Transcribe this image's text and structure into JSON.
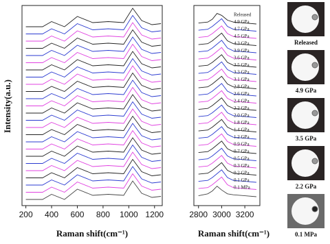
{
  "chart_data": [
    {
      "type": "line",
      "x_label": "Raman shift(cm⁻¹)",
      "y_label": "Intensity(a.u.)",
      "x": [
        200,
        330,
        400,
        500,
        600,
        720,
        840,
        960,
        1030,
        1100,
        1180,
        1250
      ],
      "xlim": [
        170,
        1260
      ],
      "xticks": [
        200,
        400,
        600,
        800,
        1000,
        1200
      ],
      "series": [
        {
          "color": "#222222",
          "values": [
            0.1,
            0.1,
            0.35,
            0.1,
            0.6,
            0.3,
            0.35,
            0.3,
            1.0,
            0.4,
            0.2,
            0.25
          ]
        },
        {
          "color": "#2a3ad0",
          "values": [
            0.1,
            0.1,
            0.35,
            0.1,
            0.6,
            0.3,
            0.35,
            0.3,
            1.0,
            0.4,
            0.2,
            0.25
          ]
        },
        {
          "color": "#e040e0",
          "values": [
            0.1,
            0.1,
            0.35,
            0.1,
            0.6,
            0.3,
            0.35,
            0.3,
            1.0,
            0.4,
            0.2,
            0.25
          ]
        },
        {
          "color": "#222222",
          "values": [
            0.1,
            0.1,
            0.35,
            0.1,
            0.6,
            0.3,
            0.35,
            0.3,
            1.0,
            0.4,
            0.2,
            0.25
          ]
        },
        {
          "color": "#2a3ad0",
          "values": [
            0.1,
            0.1,
            0.35,
            0.1,
            0.6,
            0.3,
            0.35,
            0.3,
            1.0,
            0.4,
            0.2,
            0.25
          ]
        },
        {
          "color": "#e040e0",
          "values": [
            0.1,
            0.1,
            0.35,
            0.1,
            0.6,
            0.3,
            0.35,
            0.3,
            1.0,
            0.4,
            0.2,
            0.25
          ]
        },
        {
          "color": "#222222",
          "values": [
            0.1,
            0.1,
            0.35,
            0.1,
            0.6,
            0.3,
            0.35,
            0.3,
            1.0,
            0.4,
            0.2,
            0.25
          ]
        },
        {
          "color": "#2a3ad0",
          "values": [
            0.1,
            0.1,
            0.35,
            0.1,
            0.6,
            0.3,
            0.35,
            0.3,
            1.0,
            0.4,
            0.2,
            0.25
          ]
        },
        {
          "color": "#e040e0",
          "values": [
            0.1,
            0.1,
            0.35,
            0.1,
            0.6,
            0.3,
            0.35,
            0.3,
            1.0,
            0.4,
            0.2,
            0.25
          ]
        },
        {
          "color": "#222222",
          "values": [
            0.1,
            0.1,
            0.35,
            0.1,
            0.6,
            0.3,
            0.35,
            0.3,
            1.0,
            0.4,
            0.2,
            0.25
          ]
        },
        {
          "color": "#2a3ad0",
          "values": [
            0.1,
            0.1,
            0.35,
            0.1,
            0.6,
            0.3,
            0.35,
            0.3,
            1.0,
            0.4,
            0.2,
            0.25
          ]
        },
        {
          "color": "#e040e0",
          "values": [
            0.1,
            0.1,
            0.35,
            0.1,
            0.6,
            0.3,
            0.35,
            0.3,
            1.0,
            0.4,
            0.2,
            0.25
          ]
        },
        {
          "color": "#222222",
          "values": [
            0.1,
            0.1,
            0.35,
            0.1,
            0.6,
            0.3,
            0.35,
            0.3,
            1.0,
            0.4,
            0.2,
            0.25
          ]
        },
        {
          "color": "#2a3ad0",
          "values": [
            0.1,
            0.1,
            0.35,
            0.1,
            0.6,
            0.3,
            0.35,
            0.3,
            1.0,
            0.4,
            0.2,
            0.25
          ]
        },
        {
          "color": "#e040e0",
          "values": [
            0.1,
            0.1,
            0.35,
            0.1,
            0.6,
            0.3,
            0.35,
            0.3,
            1.0,
            0.4,
            0.2,
            0.25
          ]
        },
        {
          "color": "#222222",
          "values": [
            0.1,
            0.1,
            0.35,
            0.1,
            0.6,
            0.3,
            0.35,
            0.3,
            1.0,
            0.4,
            0.2,
            0.25
          ]
        },
        {
          "color": "#2a3ad0",
          "values": [
            0.1,
            0.1,
            0.35,
            0.1,
            0.6,
            0.3,
            0.35,
            0.3,
            1.0,
            0.4,
            0.2,
            0.25
          ]
        },
        {
          "color": "#e040e0",
          "values": [
            0.1,
            0.1,
            0.35,
            0.1,
            0.6,
            0.3,
            0.35,
            0.3,
            1.0,
            0.4,
            0.2,
            0.25
          ]
        },
        {
          "color": "#222222",
          "values": [
            0.1,
            0.1,
            0.35,
            0.1,
            0.6,
            0.3,
            0.35,
            0.3,
            1.0,
            0.4,
            0.2,
            0.25
          ]
        },
        {
          "color": "#2a3ad0",
          "values": [
            0.1,
            0.1,
            0.35,
            0.1,
            0.6,
            0.3,
            0.35,
            0.3,
            1.0,
            0.4,
            0.2,
            0.25
          ]
        },
        {
          "color": "#e040e0",
          "values": [
            0.1,
            0.1,
            0.35,
            0.1,
            0.6,
            0.3,
            0.35,
            0.3,
            1.0,
            0.4,
            0.2,
            0.25
          ]
        },
        {
          "color": "#222222",
          "values": [
            0.1,
            0.1,
            0.35,
            0.1,
            0.6,
            0.3,
            0.35,
            0.3,
            1.0,
            0.4,
            0.2,
            0.25
          ]
        },
        {
          "color": "#2a3ad0",
          "values": [
            0.1,
            0.1,
            0.35,
            0.1,
            0.6,
            0.3,
            0.35,
            0.3,
            1.0,
            0.4,
            0.2,
            0.25
          ]
        },
        {
          "color": "#e040e0",
          "values": [
            0.1,
            0.1,
            0.35,
            0.1,
            0.6,
            0.3,
            0.35,
            0.3,
            1.0,
            0.4,
            0.2,
            0.25
          ]
        },
        {
          "color": "#444444",
          "values": [
            0.1,
            0.1,
            0.35,
            0.1,
            0.6,
            0.3,
            0.35,
            0.3,
            1.0,
            0.4,
            0.2,
            0.25
          ]
        }
      ]
    },
    {
      "type": "line",
      "x_label": "Raman shift(cm⁻¹)",
      "x": [
        2800,
        2880,
        2920,
        2960,
        3000,
        3050,
        3100,
        3200,
        3300
      ],
      "xlim": [
        2760,
        3330
      ],
      "xticks": [
        2800,
        3000,
        3200
      ],
      "series": [
        {
          "name": "Released",
          "color": "#222222",
          "values": [
            0.3,
            0.35,
            0.5,
            0.8,
            0.7,
            0.45,
            0.35,
            0.3,
            0.25
          ]
        },
        {
          "name": "4.9 GPa",
          "color": "#2a3ad0",
          "values": [
            0.3,
            0.35,
            0.5,
            0.7,
            0.9,
            0.5,
            0.35,
            0.3,
            0.25
          ]
        },
        {
          "name": "4.7 GPa",
          "color": "#e040e0",
          "values": [
            0.3,
            0.35,
            0.5,
            0.7,
            0.9,
            0.5,
            0.35,
            0.3,
            0.25
          ]
        },
        {
          "name": "4.5 GPa",
          "color": "#222222",
          "values": [
            0.3,
            0.35,
            0.5,
            0.7,
            0.9,
            0.5,
            0.35,
            0.3,
            0.25
          ]
        },
        {
          "name": "4.3 GPa",
          "color": "#2a3ad0",
          "values": [
            0.3,
            0.35,
            0.5,
            0.7,
            0.9,
            0.5,
            0.35,
            0.3,
            0.25
          ]
        },
        {
          "name": "3.9 GPa",
          "color": "#e040e0",
          "values": [
            0.3,
            0.35,
            0.5,
            0.7,
            0.9,
            0.5,
            0.35,
            0.3,
            0.25
          ]
        },
        {
          "name": "3.6 GPa",
          "color": "#222222",
          "values": [
            0.3,
            0.35,
            0.5,
            0.7,
            0.9,
            0.5,
            0.35,
            0.3,
            0.25
          ]
        },
        {
          "name": "3.5 GPa",
          "color": "#2a3ad0",
          "values": [
            0.3,
            0.35,
            0.5,
            0.7,
            0.9,
            0.5,
            0.35,
            0.3,
            0.25
          ]
        },
        {
          "name": "3.3 GPa",
          "color": "#e040e0",
          "values": [
            0.3,
            0.35,
            0.5,
            0.7,
            0.9,
            0.5,
            0.35,
            0.3,
            0.25
          ]
        },
        {
          "name": "3.1 GPa",
          "color": "#222222",
          "values": [
            0.3,
            0.35,
            0.5,
            0.7,
            0.9,
            0.5,
            0.35,
            0.3,
            0.25
          ]
        },
        {
          "name": "2.8 GPa",
          "color": "#2a3ad0",
          "values": [
            0.3,
            0.35,
            0.5,
            0.7,
            0.9,
            0.5,
            0.35,
            0.3,
            0.25
          ]
        },
        {
          "name": "2.6 GPa",
          "color": "#e040e0",
          "values": [
            0.3,
            0.35,
            0.5,
            0.7,
            0.9,
            0.5,
            0.35,
            0.3,
            0.25
          ]
        },
        {
          "name": "2.4 GPa",
          "color": "#222222",
          "values": [
            0.3,
            0.35,
            0.5,
            0.7,
            0.9,
            0.5,
            0.35,
            0.3,
            0.25
          ]
        },
        {
          "name": "2.2 GPa",
          "color": "#2a3ad0",
          "values": [
            0.3,
            0.35,
            0.5,
            0.7,
            0.9,
            0.5,
            0.35,
            0.3,
            0.25
          ]
        },
        {
          "name": "2.0 GPa",
          "color": "#e040e0",
          "values": [
            0.3,
            0.35,
            0.5,
            0.7,
            0.9,
            0.5,
            0.35,
            0.3,
            0.25
          ]
        },
        {
          "name": "1.8 GPa",
          "color": "#222222",
          "values": [
            0.3,
            0.35,
            0.5,
            0.7,
            0.9,
            0.5,
            0.35,
            0.3,
            0.25
          ]
        },
        {
          "name": "1.4 GPa",
          "color": "#2a3ad0",
          "values": [
            0.3,
            0.35,
            0.5,
            0.7,
            0.9,
            0.5,
            0.35,
            0.3,
            0.25
          ]
        },
        {
          "name": "1.2 GPa",
          "color": "#e040e0",
          "values": [
            0.3,
            0.35,
            0.5,
            0.7,
            0.9,
            0.5,
            0.35,
            0.3,
            0.25
          ]
        },
        {
          "name": "0.9 GPa",
          "color": "#222222",
          "values": [
            0.3,
            0.35,
            0.5,
            0.7,
            0.9,
            0.5,
            0.35,
            0.3,
            0.25
          ]
        },
        {
          "name": "0.7 GPa",
          "color": "#2a3ad0",
          "values": [
            0.3,
            0.35,
            0.5,
            0.7,
            0.9,
            0.5,
            0.35,
            0.3,
            0.25
          ]
        },
        {
          "name": "0.5 GPa",
          "color": "#e040e0",
          "values": [
            0.3,
            0.35,
            0.5,
            0.7,
            0.9,
            0.5,
            0.35,
            0.3,
            0.25
          ]
        },
        {
          "name": "0.3 GPa",
          "color": "#222222",
          "values": [
            0.3,
            0.35,
            0.5,
            0.7,
            0.9,
            0.5,
            0.35,
            0.3,
            0.25
          ]
        },
        {
          "name": "0.2 GPa",
          "color": "#2a3ad0",
          "values": [
            0.3,
            0.35,
            0.5,
            0.7,
            0.9,
            0.5,
            0.35,
            0.3,
            0.25
          ]
        },
        {
          "name": "0.1 GPa",
          "color": "#e040e0",
          "values": [
            0.3,
            0.35,
            0.5,
            0.7,
            0.9,
            0.5,
            0.35,
            0.3,
            0.25
          ]
        },
        {
          "name": "0.1 MPa",
          "color": "#444444",
          "values": [
            0.3,
            0.4,
            0.55,
            0.8,
            0.6,
            0.4,
            0.35,
            0.3,
            0.25
          ]
        }
      ]
    }
  ],
  "photos": [
    {
      "label": "Released"
    },
    {
      "label": "4.9 GPa"
    },
    {
      "label": "3.5 GPa"
    },
    {
      "label": "2.2 GPa"
    },
    {
      "label": "0.1 MPa"
    }
  ]
}
